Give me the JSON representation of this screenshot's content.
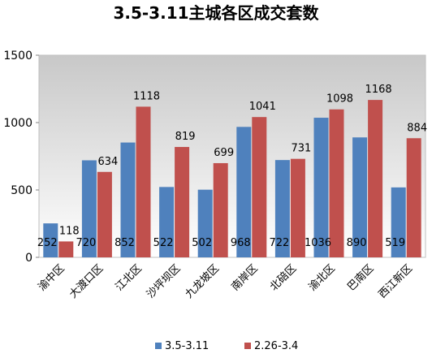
{
  "chart_data": {
    "type": "bar",
    "title": "3.5-3.11主城各区成交套数",
    "categories": [
      "渝中区",
      "大渡口区",
      "江北区",
      "沙坪坝区",
      "九龙坡区",
      "南岸区",
      "北碚区",
      "渝北区",
      "巴南区",
      "西江新区"
    ],
    "series": [
      {
        "name": "3.5-3.11",
        "color": "#4f81bd",
        "values": [
          252,
          720,
          852,
          522,
          502,
          968,
          722,
          1036,
          890,
          519
        ]
      },
      {
        "name": "2.26-3.4",
        "color": "#c0504d",
        "values": [
          118,
          634,
          1118,
          819,
          699,
          1041,
          731,
          1098,
          1168,
          884
        ]
      }
    ],
    "ylim": [
      0,
      1500
    ],
    "yticks": [
      0,
      500,
      1000,
      1500
    ],
    "grid": false,
    "legend": "bottom",
    "plot_background": "#d9d9d9"
  }
}
